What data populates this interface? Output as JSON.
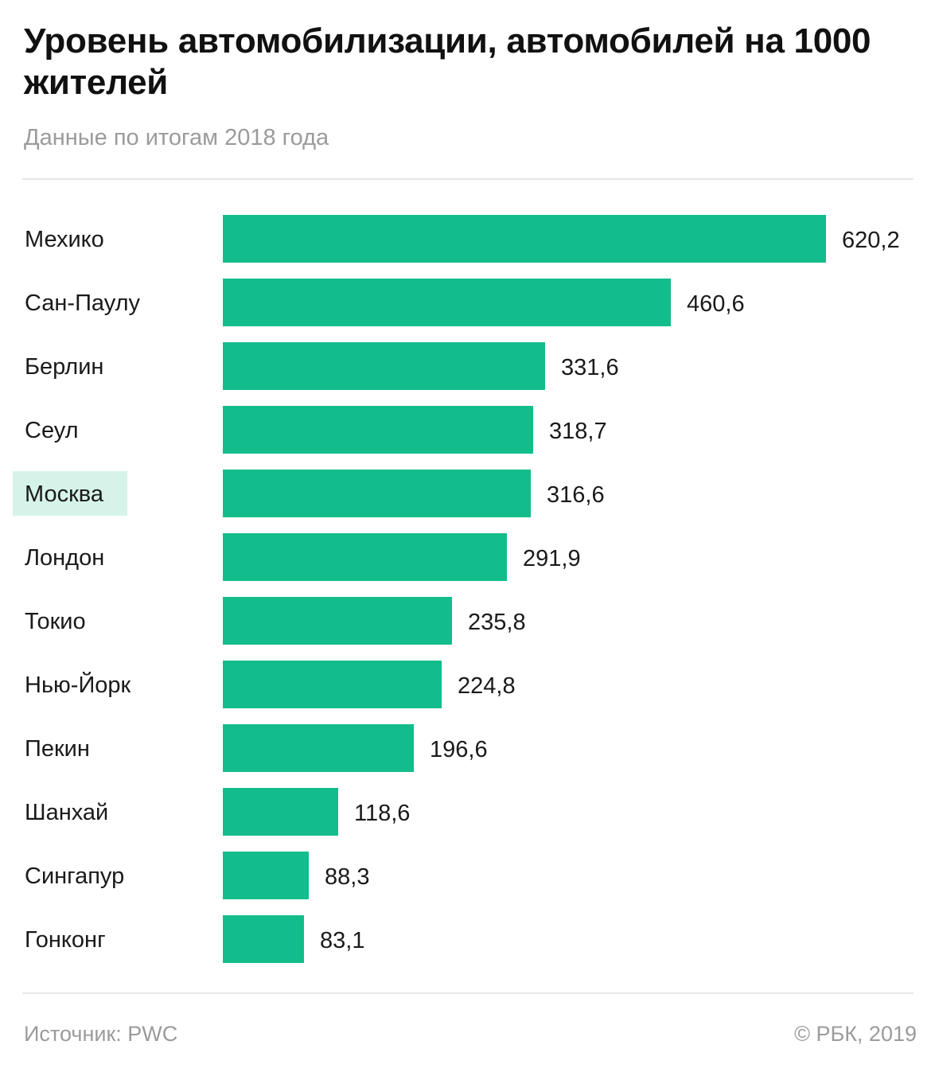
{
  "header": {
    "title": "Уровень автомобилизации, автомобилей на 1000 жителей",
    "subtitle": "Данные по итогам 2018 года"
  },
  "footer": {
    "source": "Источник: PWC",
    "copyright": "© РБК, 2019"
  },
  "colors": {
    "bar": "#13bd8b",
    "highlight_bg": "#d6f3ea",
    "label_text": "#1a1a1a",
    "muted_text": "#9b9b9b"
  },
  "chart_data": {
    "type": "bar",
    "orientation": "horizontal",
    "categories": [
      "Мехико",
      "Сан-Паулу",
      "Берлин",
      "Сеул",
      "Москва",
      "Лондон",
      "Токио",
      "Нью-Йорк",
      "Пекин",
      "Шанхай",
      "Сингапур",
      "Гонконг"
    ],
    "values": [
      620.2,
      460.6,
      331.6,
      318.7,
      316.6,
      291.9,
      235.8,
      224.8,
      196.6,
      118.6,
      88.3,
      83.1
    ],
    "value_labels": [
      "620,2",
      "460,6",
      "331,6",
      "318,7",
      "316,6",
      "291,9",
      "235,8",
      "224,8",
      "196,6",
      "118,6",
      "88,3",
      "83,1"
    ],
    "highlighted_category": "Москва",
    "xlim": [
      0,
      620.2
    ],
    "grid": false,
    "legend": "none"
  }
}
